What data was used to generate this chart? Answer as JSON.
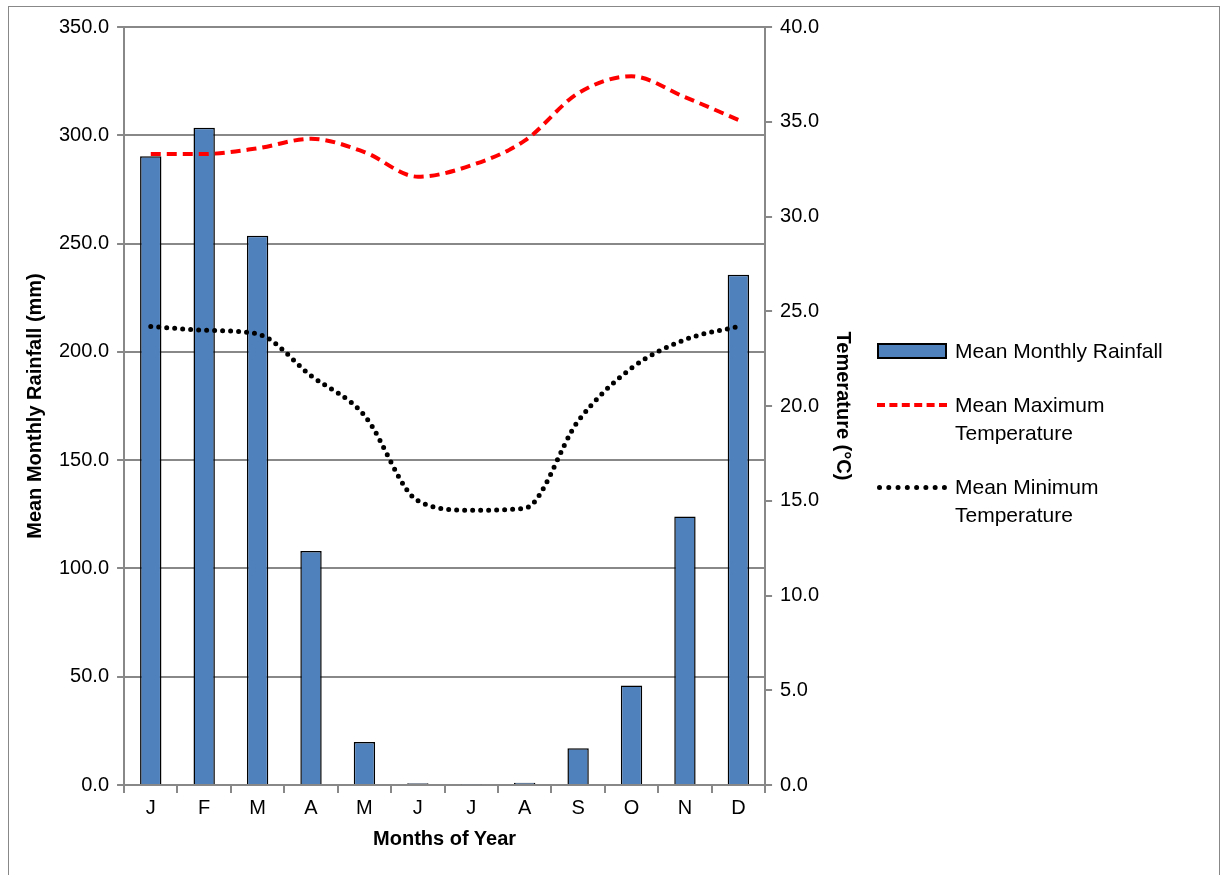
{
  "chart_data": {
    "type": "bar",
    "xlabel": "Months of Year",
    "ylabel": "Mean Monthly Rainfall (mm)",
    "y2label": "Temerature (°C)",
    "categories": [
      "J",
      "F",
      "M",
      "A",
      "M",
      "J",
      "J",
      "A",
      "S",
      "O",
      "N",
      "D"
    ],
    "series": [
      {
        "name": "Mean Monthly Rainfall",
        "color": "#4f81bd",
        "values": [
          290.3,
          303.5,
          253.6,
          108,
          19.8,
          0.8,
          0.3,
          1.0,
          17,
          46,
          124,
          235.6
        ]
      },
      {
        "name": "Mean Maximum Temperature",
        "type": "line",
        "axis": "y2",
        "color": "#ff0000",
        "line_style": "dashed",
        "values": [
          33.3,
          33.3,
          33.6,
          34.1,
          33.4,
          32.1,
          32.7,
          34.0,
          36.5,
          37.4,
          36.3,
          35.1
        ]
      },
      {
        "name": "Mean Minimum Temperature",
        "type": "line",
        "axis": "y2",
        "color": "#000000",
        "line_style": "dotted",
        "values": [
          24.2,
          24.0,
          23.8,
          21.6,
          19.5,
          15.0,
          14.5,
          14.6,
          19.2,
          22.0,
          23.5,
          24.2
        ]
      }
    ],
    "ylim": [
      0,
      350
    ],
    "yticks": [
      {
        "value": 0,
        "label": "0.0"
      },
      {
        "value": 50,
        "label": "50.0"
      },
      {
        "value": 100,
        "label": "100.0"
      },
      {
        "value": 150,
        "label": "150.0"
      },
      {
        "value": 200,
        "label": "200.0"
      },
      {
        "value": 250,
        "label": "250.0"
      },
      {
        "value": 300,
        "label": "300.0"
      },
      {
        "value": 350,
        "label": "350.0"
      }
    ],
    "y2lim": [
      0,
      40
    ],
    "y2ticks": [
      {
        "value": 0,
        "label": "0.0"
      },
      {
        "value": 5,
        "label": "5.0"
      },
      {
        "value": 10,
        "label": "10.0"
      },
      {
        "value": 15,
        "label": "15.0"
      },
      {
        "value": 20,
        "label": "20.0"
      },
      {
        "value": 25,
        "label": "25.0"
      },
      {
        "value": 30,
        "label": "30.0"
      },
      {
        "value": 35,
        "label": "35.0"
      },
      {
        "value": 40,
        "label": "40.0"
      }
    ],
    "grid": "y",
    "legend": "right",
    "marker": "none"
  }
}
